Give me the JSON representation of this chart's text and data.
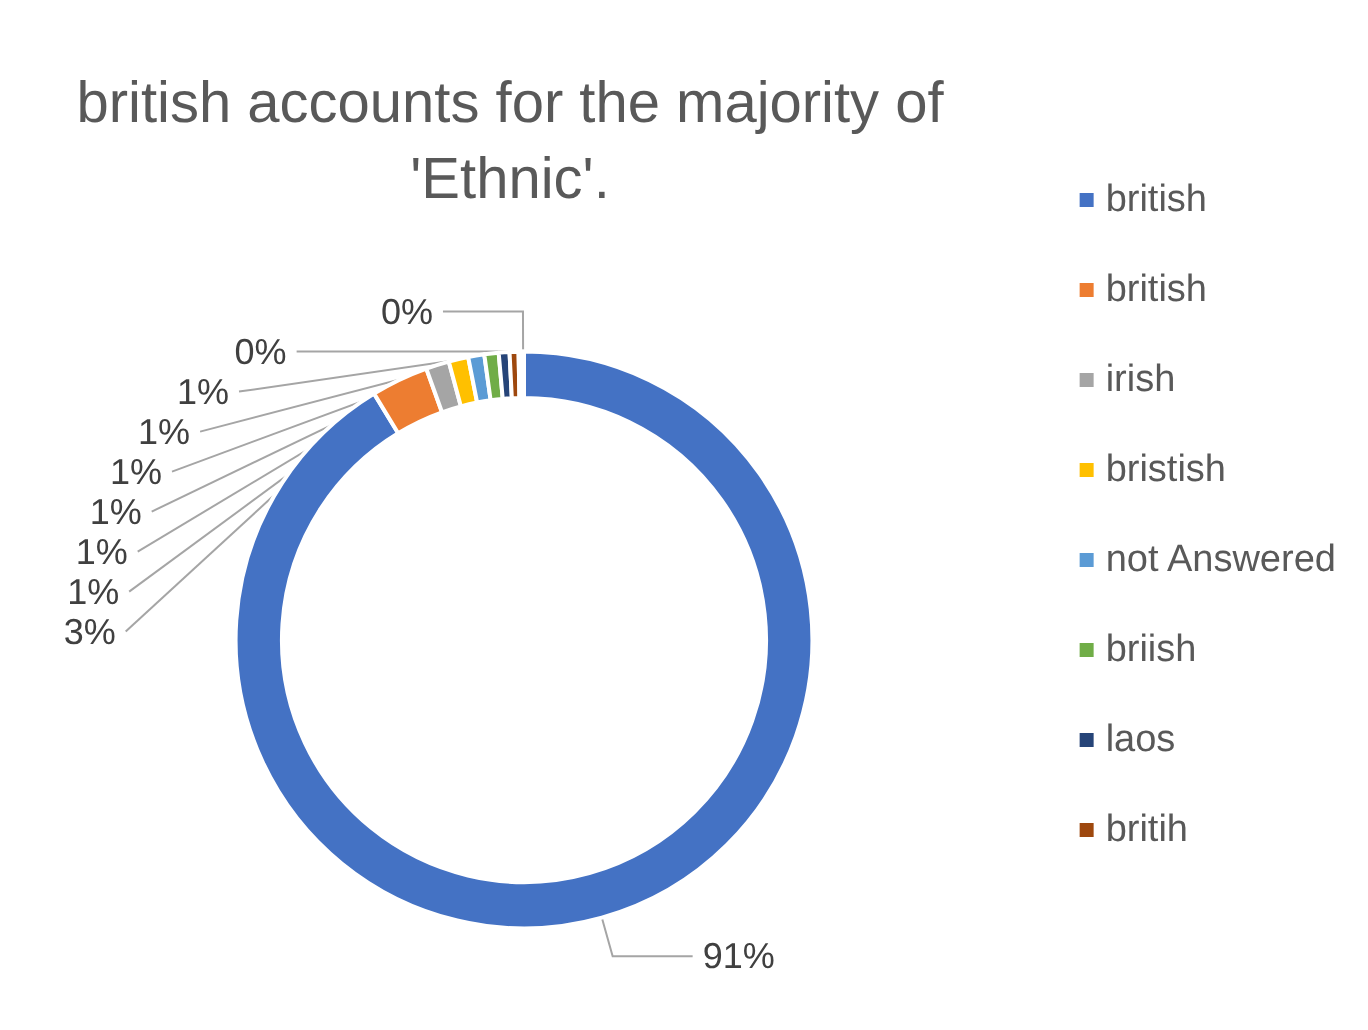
{
  "chart_data": {
    "type": "donut",
    "title": "british accounts for the majority of 'Ethnic'.",
    "categories": [
      "british",
      "british",
      "irish",
      "bristish",
      "not Answered",
      "briish",
      "laos",
      "britih",
      null,
      null
    ],
    "values": [
      91.3,
      3.2,
      1.3,
      1.1,
      0.9,
      0.8,
      0.6,
      0.5,
      0.2,
      0.1
    ],
    "value_labels": [
      "91%",
      "3%",
      "1%",
      "1%",
      "1%",
      "1%",
      "1%",
      "1%",
      "0%",
      "0%"
    ],
    "colors": [
      "#4472c4",
      "#ed7d31",
      "#a5a5a5",
      "#ffc000",
      "#5b9bd5",
      "#70ad47",
      "#264478",
      "#9e480e",
      "#636363",
      "#997300"
    ],
    "legend": "right"
  }
}
